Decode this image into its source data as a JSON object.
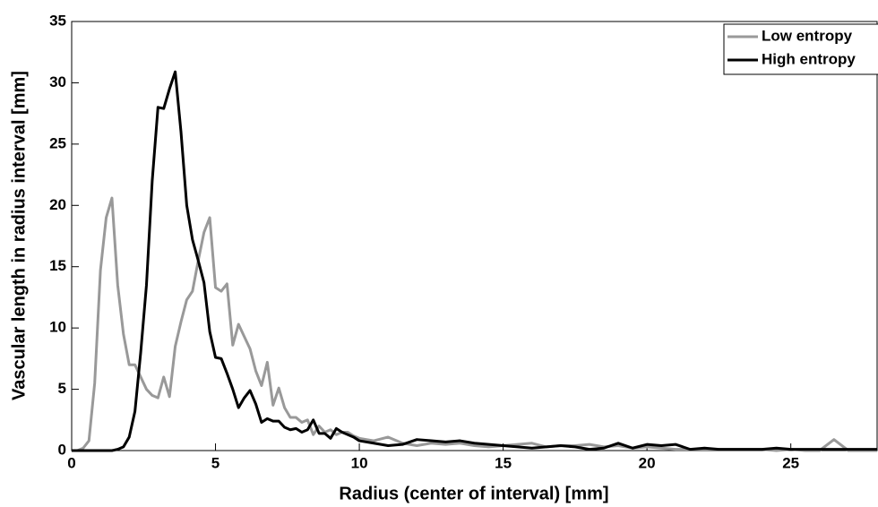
{
  "chart_data": {
    "type": "line",
    "x_label": "Radius (center of interval) [mm]",
    "y_label": "Vascular length in radius interval [mm]",
    "x": [
      0,
      0.2,
      0.4,
      0.6,
      0.8,
      1,
      1.2,
      1.4,
      1.6,
      1.8,
      2,
      2.2,
      2.4,
      2.6,
      2.8,
      3,
      3.2,
      3.4,
      3.6,
      3.8,
      4,
      4.2,
      4.4,
      4.6,
      4.8,
      5,
      5.2,
      5.4,
      5.6,
      5.8,
      6,
      6.2,
      6.4,
      6.6,
      6.8,
      7,
      7.2,
      7.4,
      7.6,
      7.8,
      8,
      8.2,
      8.4,
      8.6,
      8.8,
      9,
      9.2,
      9.4,
      9.6,
      9.8,
      10,
      10.5,
      11,
      11.5,
      12,
      12.5,
      13,
      13.5,
      14,
      14.5,
      15,
      15.5,
      16,
      16.5,
      17,
      17.5,
      18,
      18.5,
      19,
      19.5,
      20,
      20.5,
      21,
      21.5,
      22,
      22.5,
      23,
      23.5,
      24,
      24.5,
      25,
      25.5,
      26,
      26.5,
      27,
      27.5,
      28
    ],
    "series": [
      {
        "name": "Low entropy",
        "color": "#999999",
        "values": [
          0,
          0,
          0.2,
          0.8,
          5.5,
          14.7,
          19,
          20.6,
          13.5,
          9.5,
          7,
          7,
          6,
          5,
          4.5,
          4.3,
          6,
          4.4,
          8.5,
          10.5,
          12.3,
          13,
          15.5,
          17.8,
          19,
          13.3,
          13,
          13.6,
          8.6,
          10.3,
          9.3,
          8.3,
          6.5,
          5.3,
          7.2,
          3.7,
          5.1,
          3.5,
          2.7,
          2.7,
          2.3,
          2.5,
          1.3,
          2,
          1.5,
          1.7,
          1.3,
          1.5,
          1.5,
          1.2,
          1,
          0.8,
          1.1,
          0.6,
          0.4,
          0.6,
          0.5,
          0.6,
          0.4,
          0.3,
          0.4,
          0.5,
          0.6,
          0.3,
          0.4,
          0.4,
          0.5,
          0.3,
          0.4,
          0.2,
          0.3,
          0.2,
          0.1,
          0.1,
          0.1,
          0.1,
          0.1,
          0.1,
          0.1,
          0,
          0.1,
          0,
          0,
          0.9,
          0,
          0,
          0
        ]
      },
      {
        "name": "High entropy",
        "color": "#000000",
        "values": [
          0,
          0,
          0,
          0,
          0,
          0,
          0,
          0,
          0.1,
          0.3,
          1.1,
          3.2,
          8,
          13.5,
          22,
          28,
          27.9,
          29.5,
          30.9,
          26,
          20,
          17.2,
          15.5,
          13.7,
          9.7,
          7.6,
          7.5,
          6.3,
          5,
          3.5,
          4.3,
          4.9,
          3.8,
          2.3,
          2.6,
          2.4,
          2.4,
          1.9,
          1.7,
          1.8,
          1.5,
          1.7,
          2.5,
          1.4,
          1.4,
          1,
          1.8,
          1.5,
          1.3,
          1.1,
          0.8,
          0.6,
          0.4,
          0.5,
          0.9,
          0.8,
          0.7,
          0.8,
          0.6,
          0.5,
          0.4,
          0.3,
          0.2,
          0.3,
          0.4,
          0.3,
          0.1,
          0.2,
          0.6,
          0.2,
          0.5,
          0.4,
          0.5,
          0.1,
          0.2,
          0.1,
          0.1,
          0.1,
          0.1,
          0.2,
          0.1,
          0.1,
          0.1,
          0.1,
          0.1,
          0.1,
          0.1
        ]
      }
    ],
    "xlim": [
      0,
      28
    ],
    "xticks": [
      0,
      5,
      10,
      15,
      20,
      25
    ],
    "ylim": [
      0,
      35
    ],
    "yticks": [
      0,
      5,
      10,
      15,
      20,
      25,
      30,
      35
    ],
    "legend": "northeast",
    "grid": false
  }
}
